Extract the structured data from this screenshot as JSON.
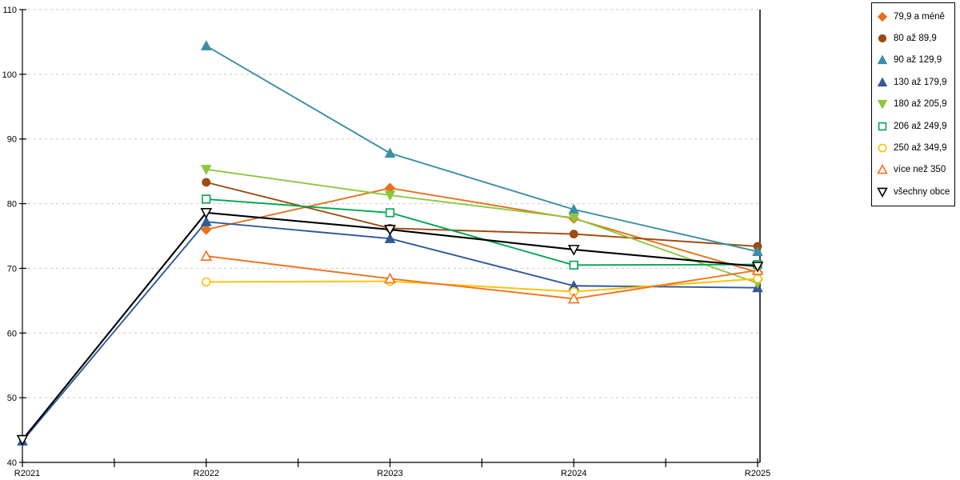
{
  "chart_data": {
    "type": "line",
    "categories": [
      "R2021",
      "R2022",
      "R2023",
      "R2024",
      "R2025"
    ],
    "series": [
      {
        "name": "79,9 a méně",
        "color": "#E8711A",
        "marker": "diamond",
        "marker_style": "filled",
        "values": [
          null,
          76.0,
          82.4,
          77.7,
          69.4
        ]
      },
      {
        "name": "80 až 89,9",
        "color": "#9E4B10",
        "marker": "circle",
        "marker_style": "filled",
        "values": [
          null,
          83.3,
          76.2,
          75.3,
          73.4
        ]
      },
      {
        "name": "90 až 129,9",
        "color": "#3A8FA6",
        "marker": "triangle-up",
        "marker_style": "filled",
        "values": [
          null,
          104.4,
          87.8,
          79.1,
          72.6
        ]
      },
      {
        "name": "130 až 179,9",
        "color": "#31589B",
        "marker": "triangle-up",
        "marker_style": "filled",
        "values": [
          43.3,
          77.2,
          74.6,
          67.3,
          67.0
        ]
      },
      {
        "name": "180 až 205,9",
        "color": "#8DC73F",
        "marker": "triangle-down",
        "marker_style": "filled",
        "values": [
          null,
          85.3,
          81.3,
          77.8,
          67.7
        ]
      },
      {
        "name": "206 až 249,9",
        "color": "#00A651",
        "marker": "square",
        "marker_style": "open",
        "values": [
          null,
          80.7,
          78.6,
          70.5,
          70.6
        ]
      },
      {
        "name": "250 až 349,9",
        "color": "#FFC000",
        "marker": "circle",
        "marker_style": "open",
        "values": [
          null,
          67.9,
          68.0,
          66.4,
          68.4
        ]
      },
      {
        "name": "více než 350",
        "color": "#F4711F",
        "marker": "triangle-up",
        "marker_style": "open",
        "values": [
          null,
          71.9,
          68.4,
          65.3,
          69.7
        ]
      },
      {
        "name": "všechny obce",
        "color": "#000000",
        "marker": "triangle-down",
        "marker_style": "open",
        "values": [
          43.5,
          78.6,
          76.0,
          72.9,
          70.3
        ]
      }
    ],
    "title": "",
    "xlabel": "",
    "ylabel": "",
    "ylim": [
      40,
      110
    ],
    "y_ticks": [
      40,
      50,
      60,
      70,
      80,
      90,
      100,
      110
    ],
    "y_tick_labels": [
      "40",
      "50",
      "60",
      "70",
      "80",
      "90",
      "100",
      "110"
    ],
    "grid": "horizontal-dashed",
    "legend_position": "top-right"
  },
  "colors": {
    "background": "#FFFFFF",
    "axis": "#000000",
    "gridline": "#C8C8C8",
    "legend_border": "#000000"
  }
}
